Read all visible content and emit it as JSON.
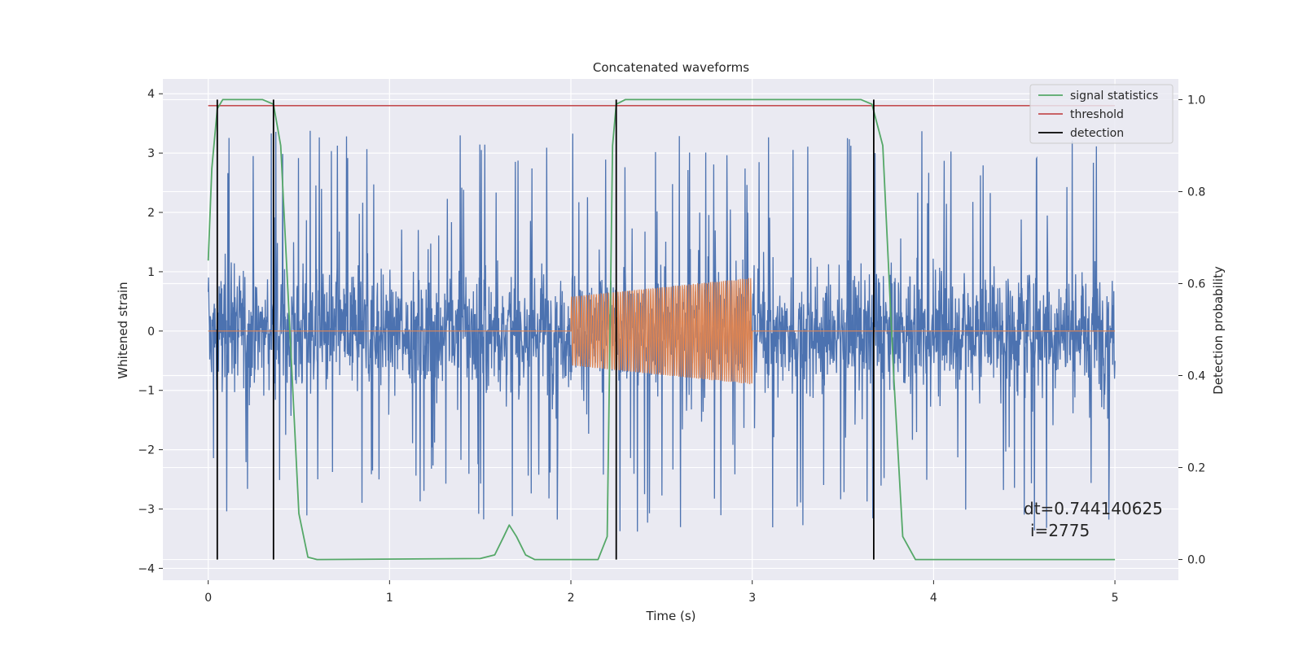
{
  "chart_data": {
    "type": "line",
    "title": "Concatenated waveforms",
    "xlabel": "Time (s)",
    "ylabel": "Whitened strain",
    "ylabel_right": "Detection probability",
    "xlim": [
      -0.25,
      5.35
    ],
    "ylim": [
      -4.2,
      4.25
    ],
    "ylim_right": [
      -0.045,
      1.045
    ],
    "x_ticks": [
      0,
      1,
      2,
      3,
      4,
      5
    ],
    "y_ticks": [
      -4,
      -3,
      -2,
      -1,
      0,
      1,
      2,
      3,
      4
    ],
    "y_ticks_right": [
      0.0,
      0.2,
      0.4,
      0.6,
      0.8,
      1.0
    ],
    "grid": true,
    "legend_position": "top-right",
    "colors": {
      "strain": "#4c72b0",
      "waveform": "#dd8452",
      "signal_statistics": "#55a868",
      "threshold": "#c44e52",
      "detection": "#000000",
      "plot_bg": "#eaeaf2",
      "grid": "#ffffff"
    },
    "series": [
      {
        "name": "",
        "role": "whitened strain noise",
        "axis": "left",
        "x_range": [
          0,
          5
        ],
        "amplitude_core": 0.7,
        "peak_range": [
          -3.5,
          3.5
        ]
      },
      {
        "name": "",
        "role": "injected waveform",
        "axis": "left",
        "x_range": [
          2,
          3
        ],
        "envelope_start": 0.58,
        "envelope_end": 0.9,
        "baseline": 0
      },
      {
        "name": "signal statistics",
        "axis": "right",
        "x": [
          0,
          0.02,
          0.05,
          0.08,
          0.1,
          0.3,
          0.36,
          0.4,
          0.45,
          0.5,
          0.55,
          0.6,
          1.5,
          1.58,
          1.63,
          1.66,
          1.7,
          1.75,
          1.8,
          2.15,
          2.2,
          2.23,
          2.25,
          2.3,
          3.6,
          3.66,
          3.72,
          3.78,
          3.83,
          3.9,
          5
        ],
        "y": [
          0.65,
          0.85,
          0.98,
          1.0,
          1.0,
          1.0,
          0.99,
          0.9,
          0.5,
          0.1,
          0.005,
          0.0,
          0.002,
          0.01,
          0.05,
          0.075,
          0.05,
          0.01,
          0.0,
          0.0,
          0.05,
          0.9,
          0.99,
          1.0,
          1.0,
          0.99,
          0.9,
          0.4,
          0.05,
          0.0,
          0.0
        ]
      },
      {
        "name": "threshold",
        "axis": "right",
        "x": [
          0,
          5
        ],
        "y": [
          0.987,
          0.987
        ]
      },
      {
        "name": "detection",
        "axis": "right",
        "lines_x": [
          0.05,
          0.36,
          2.25,
          3.67
        ],
        "y_range": [
          0.0,
          1.0
        ]
      }
    ],
    "legend": [
      "signal statistics",
      "threshold",
      "detection"
    ],
    "annotation": {
      "line1": "dt=0.744140625",
      "line2": "i=2775"
    }
  }
}
